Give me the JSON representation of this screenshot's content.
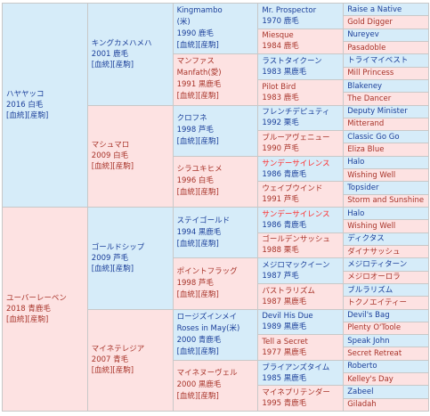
{
  "generations": [
    [
      {
        "lines": [
          "ハヤヤッコ",
          "2016 白毛",
          "[血統][産駒]"
        ]
      },
      {
        "lines": [
          "ユーバーレーベン",
          "2018 青鹿毛",
          "[血統][産駒]"
        ]
      }
    ],
    [
      {
        "lines": [
          "キングカメハメハ",
          "2001 鹿毛",
          "[血統][産駒]"
        ]
      },
      {
        "lines": [
          "マシュマロ",
          "2009 白毛",
          "[血統][産駒]"
        ]
      },
      {
        "lines": [
          "ゴールドシップ",
          "2009 芦毛",
          "[血統][産駒]"
        ]
      },
      {
        "lines": [
          "マイネテレジア",
          "2007 青毛",
          "[血統][産駒]"
        ]
      }
    ],
    [
      {
        "lines": [
          "Kingmambo",
          "(米)",
          "1990 鹿毛",
          "[血統][産駒]"
        ]
      },
      {
        "lines": [
          "マンファス",
          "Manfath(愛)",
          "1991 黒鹿毛",
          "[血統][産駒]"
        ]
      },
      {
        "lines": [
          "クロフネ",
          "1998 芦毛",
          "[血統][産駒]"
        ]
      },
      {
        "lines": [
          "シラユキヒメ",
          "1996 白毛",
          "[血統][産駒]"
        ]
      },
      {
        "lines": [
          "ステイゴールド",
          "1994 黒鹿毛",
          "[血統][産駒]"
        ]
      },
      {
        "lines": [
          "ポイントフラッグ",
          "1998 芦毛",
          "[血統][産駒]"
        ]
      },
      {
        "lines": [
          "ロージズインメイ",
          "Roses in May(米)",
          "2000 青鹿毛",
          "[血統][産駒]"
        ]
      },
      {
        "lines": [
          "マイネヌーヴェル",
          "2000 黒鹿毛",
          "[血統][産駒]"
        ]
      }
    ],
    [
      {
        "lines": [
          "Mr. Prospector",
          "1970 鹿毛"
        ]
      },
      {
        "lines": [
          "Miesque",
          "1984 鹿毛"
        ]
      },
      {
        "lines": [
          "ラストタイクーン",
          "1983 黒鹿毛"
        ]
      },
      {
        "lines": [
          "Pilot Bird",
          "1983 鹿毛"
        ]
      },
      {
        "lines": [
          "フレンチデピュティ",
          "1992 栗毛"
        ]
      },
      {
        "lines": [
          "ブルーアヴェニュー",
          "1990 芦毛"
        ]
      },
      {
        "lines": [
          "サンデーサイレンス",
          "1986 青鹿毛"
        ],
        "highlighted": true
      },
      {
        "lines": [
          "ウェイブウインド",
          "1991 芦毛"
        ]
      },
      {
        "lines": [
          "サンデーサイレンス",
          "1986 青鹿毛"
        ],
        "highlighted": true
      },
      {
        "lines": [
          "ゴールデンサッシュ",
          "1988 栗毛"
        ]
      },
      {
        "lines": [
          "メジロマックイーン",
          "1987 芦毛"
        ]
      },
      {
        "lines": [
          "パストラリズム",
          "1987 黒鹿毛"
        ]
      },
      {
        "lines": [
          "Devil His Due",
          "1989 黒鹿毛"
        ]
      },
      {
        "lines": [
          "Tell a Secret",
          "1977 黒鹿毛"
        ]
      },
      {
        "lines": [
          "ブライアンズタイム",
          "1985 黒鹿毛"
        ]
      },
      {
        "lines": [
          "マイネプリテンダー",
          "1995 青鹿毛"
        ]
      }
    ],
    [
      {
        "lines": [
          "Raise a Native"
        ]
      },
      {
        "lines": [
          "Gold Digger"
        ]
      },
      {
        "lines": [
          "Nureyev"
        ]
      },
      {
        "lines": [
          "Pasadoble"
        ]
      },
      {
        "lines": [
          "トライマイベスト"
        ]
      },
      {
        "lines": [
          "Mill Princess"
        ]
      },
      {
        "lines": [
          "Blakeney"
        ]
      },
      {
        "lines": [
          "The Dancer"
        ]
      },
      {
        "lines": [
          "Deputy Minister"
        ]
      },
      {
        "lines": [
          "Mitterand"
        ]
      },
      {
        "lines": [
          "Classic Go Go"
        ]
      },
      {
        "lines": [
          "Eliza Blue"
        ]
      },
      {
        "lines": [
          "Halo"
        ]
      },
      {
        "lines": [
          "Wishing Well"
        ]
      },
      {
        "lines": [
          "Topsider"
        ]
      },
      {
        "lines": [
          "Storm and Sunshine"
        ]
      },
      {
        "lines": [
          "Halo"
        ]
      },
      {
        "lines": [
          "Wishing Well"
        ]
      },
      {
        "lines": [
          "ディクタス"
        ]
      },
      {
        "lines": [
          "ダイナサッシュ"
        ]
      },
      {
        "lines": [
          "メジロティターン"
        ]
      },
      {
        "lines": [
          "メジロオーロラ"
        ]
      },
      {
        "lines": [
          "ブルラリズム"
        ]
      },
      {
        "lines": [
          "トクノエイティー"
        ]
      },
      {
        "lines": [
          "Devil's Bag"
        ]
      },
      {
        "lines": [
          "Plenty O'Toole"
        ]
      },
      {
        "lines": [
          "Speak John"
        ]
      },
      {
        "lines": [
          "Secret Retreat"
        ]
      },
      {
        "lines": [
          "Roberto"
        ]
      },
      {
        "lines": [
          "Kelley's Day"
        ]
      },
      {
        "lines": [
          "Zabeel"
        ]
      },
      {
        "lines": [
          "Giladah"
        ]
      }
    ]
  ]
}
